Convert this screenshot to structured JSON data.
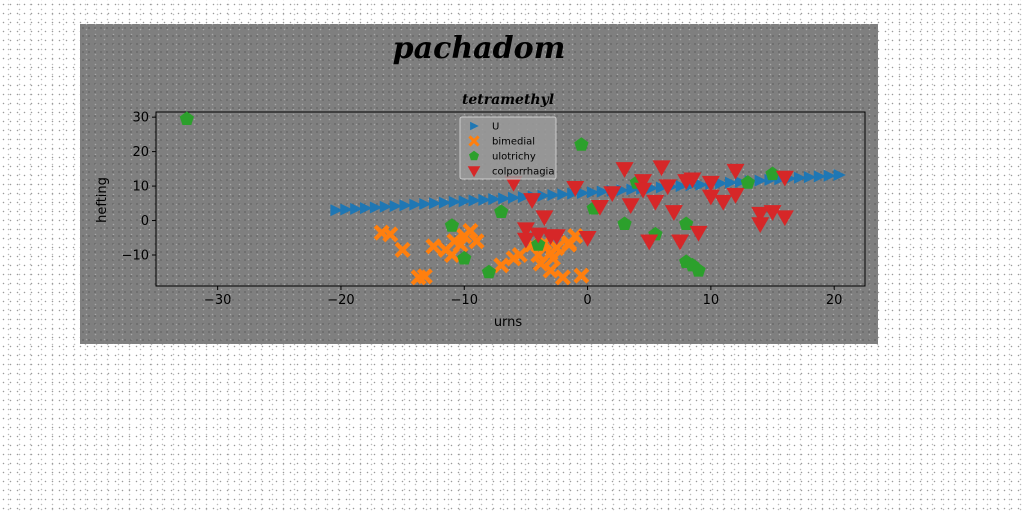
{
  "chart_data": {
    "type": "scatter",
    "suptitle": "pachadom",
    "title": "tetramethyl",
    "xlabel": "urns",
    "ylabel": "hefting",
    "xlim": [
      -35,
      22.5
    ],
    "ylim": [
      -19,
      31.5
    ],
    "xticks": [
      -30,
      -20,
      -10,
      0,
      10,
      20
    ],
    "yticks": [
      -10,
      0,
      10,
      20,
      30
    ],
    "legend_position": "upper center",
    "grid": false,
    "series": [
      {
        "name": "U",
        "marker": "triangle-right",
        "color": "#1f77b4",
        "points": [
          [
            -20.4,
            3.0
          ],
          [
            -19.6,
            3.2
          ],
          [
            -18.8,
            3.4
          ],
          [
            -18.0,
            3.6
          ],
          [
            -17.2,
            3.8
          ],
          [
            -16.4,
            4.0
          ],
          [
            -15.6,
            4.2
          ],
          [
            -14.8,
            4.4
          ],
          [
            -14.0,
            4.6
          ],
          [
            -13.2,
            4.8
          ],
          [
            -12.4,
            5.0
          ],
          [
            -11.6,
            5.2
          ],
          [
            -10.8,
            5.4
          ],
          [
            -10.0,
            5.6
          ],
          [
            -9.2,
            5.8
          ],
          [
            -8.4,
            6.0
          ],
          [
            -7.6,
            6.2
          ],
          [
            -6.8,
            6.4
          ],
          [
            -6.0,
            6.6
          ],
          [
            -5.2,
            6.8
          ],
          [
            -4.4,
            7.0
          ],
          [
            -3.6,
            7.2
          ],
          [
            -2.8,
            7.4
          ],
          [
            -2.0,
            7.6
          ],
          [
            -1.2,
            7.8
          ],
          [
            -0.4,
            8.0
          ],
          [
            0.4,
            8.2
          ],
          [
            1.2,
            8.4
          ],
          [
            2.0,
            8.6
          ],
          [
            2.8,
            8.8
          ],
          [
            3.6,
            9.0
          ],
          [
            4.4,
            9.2
          ],
          [
            5.2,
            9.4
          ],
          [
            6.0,
            9.6
          ],
          [
            6.8,
            9.8
          ],
          [
            7.6,
            10.0
          ],
          [
            8.4,
            10.2
          ],
          [
            9.2,
            10.4
          ],
          [
            10.0,
            10.6
          ],
          [
            10.8,
            10.8
          ],
          [
            11.6,
            11.0
          ],
          [
            12.4,
            11.2
          ],
          [
            13.2,
            11.4
          ],
          [
            14.0,
            11.6
          ],
          [
            14.8,
            11.8
          ],
          [
            15.6,
            12.0
          ],
          [
            16.4,
            12.2
          ],
          [
            17.2,
            12.4
          ],
          [
            18.0,
            12.6
          ],
          [
            18.8,
            12.8
          ],
          [
            19.6,
            13.0
          ],
          [
            20.4,
            13.2
          ]
        ]
      },
      {
        "name": "bimedial",
        "marker": "x-filled",
        "color": "#ff7f0e",
        "points": [
          [
            -16.7,
            -3.5
          ],
          [
            -16.0,
            -4.0
          ],
          [
            -15.0,
            -8.5
          ],
          [
            -13.7,
            -16.5
          ],
          [
            -13.2,
            -16.2
          ],
          [
            -12.5,
            -7.5
          ],
          [
            -11.5,
            -8.5
          ],
          [
            -11.0,
            -10.0
          ],
          [
            -10.8,
            -6.0
          ],
          [
            -10.3,
            -7.0
          ],
          [
            -10.0,
            -4.5
          ],
          [
            -9.5,
            -3.0
          ],
          [
            -9.0,
            -6.0
          ],
          [
            -7.0,
            -13.0
          ],
          [
            -6.0,
            -11.0
          ],
          [
            -5.5,
            -10.0
          ],
          [
            -4.5,
            -7.0
          ],
          [
            -4.0,
            -10.0
          ],
          [
            -3.8,
            -12.5
          ],
          [
            -3.5,
            -6.5
          ],
          [
            -3.0,
            -14.5
          ],
          [
            -2.8,
            -11.0
          ],
          [
            -2.5,
            -8.0
          ],
          [
            -2.0,
            -16.5
          ],
          [
            -1.5,
            -6.5
          ],
          [
            -1.0,
            -4.5
          ],
          [
            -0.5,
            -16.0
          ],
          [
            -3.0,
            -9.5
          ],
          [
            -1.5,
            -7.0
          ]
        ]
      },
      {
        "name": "ulotrichy",
        "marker": "pentagon",
        "color": "#2ca02c",
        "points": [
          [
            -32.5,
            29.5
          ],
          [
            -11.0,
            -1.5
          ],
          [
            -10.0,
            -11.0
          ],
          [
            -8.0,
            -15.0
          ],
          [
            -7.0,
            2.5
          ],
          [
            -4.0,
            -7.0
          ],
          [
            -0.5,
            22.0
          ],
          [
            0.5,
            3.5
          ],
          [
            3.0,
            -1.0
          ],
          [
            4.0,
            11.0
          ],
          [
            5.5,
            -4.0
          ],
          [
            8.0,
            -1.0
          ],
          [
            8.0,
            -12.0
          ],
          [
            8.5,
            -13.0
          ],
          [
            9.0,
            -14.5
          ],
          [
            13.0,
            11.0
          ],
          [
            15.0,
            13.5
          ]
        ]
      },
      {
        "name": "colporrhagia",
        "marker": "triangle-down",
        "color": "#d62728",
        "points": [
          [
            -6.0,
            11.0
          ],
          [
            -5.0,
            -2.5
          ],
          [
            -5.0,
            -5.5
          ],
          [
            -4.5,
            6.0
          ],
          [
            -4.0,
            -4.0
          ],
          [
            -3.5,
            1.0
          ],
          [
            -3.0,
            -4.5
          ],
          [
            -2.5,
            -4.5
          ],
          [
            -1.0,
            9.5
          ],
          [
            0.0,
            -5.0
          ],
          [
            1.0,
            4.0
          ],
          [
            2.0,
            8.0
          ],
          [
            3.0,
            15.0
          ],
          [
            3.5,
            4.5
          ],
          [
            4.5,
            11.5
          ],
          [
            5.0,
            -6.0
          ],
          [
            5.5,
            5.5
          ],
          [
            6.0,
            15.5
          ],
          [
            6.5,
            10.0
          ],
          [
            7.0,
            2.5
          ],
          [
            7.5,
            -6.0
          ],
          [
            8.0,
            11.5
          ],
          [
            8.5,
            12.0
          ],
          [
            9.0,
            -3.5
          ],
          [
            10.0,
            11.0
          ],
          [
            10.0,
            7.0
          ],
          [
            11.0,
            5.5
          ],
          [
            12.0,
            7.5
          ],
          [
            12.0,
            14.5
          ],
          [
            14.0,
            2.0
          ],
          [
            14.0,
            -1.0
          ],
          [
            15.0,
            2.5
          ],
          [
            16.0,
            12.5
          ],
          [
            16.0,
            1.0
          ],
          [
            4.5,
            9.0
          ]
        ]
      }
    ]
  }
}
